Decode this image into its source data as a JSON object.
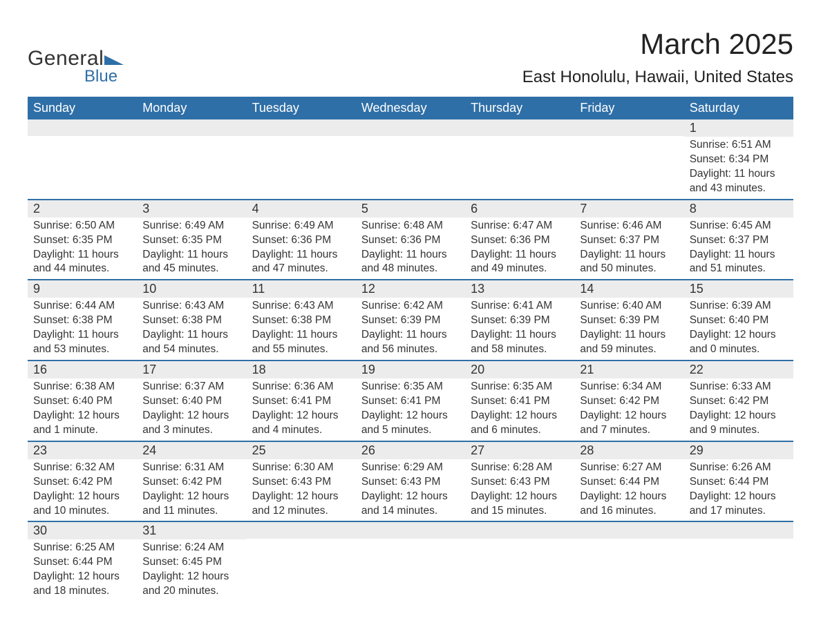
{
  "logo": {
    "text1": "General",
    "text2": "Blue",
    "brand_color": "#2f6fa7"
  },
  "title": "March 2025",
  "location": "East Honolulu, Hawaii, United States",
  "colors": {
    "header_bg": "#2f6fa7",
    "header_text": "#ffffff",
    "daynum_bg": "#ececec",
    "row_border": "#2f6fa7",
    "body_text": "#333333"
  },
  "day_headers": [
    "Sunday",
    "Monday",
    "Tuesday",
    "Wednesday",
    "Thursday",
    "Friday",
    "Saturday"
  ],
  "weeks": [
    [
      {
        "n": "",
        "sr": "",
        "ss": "",
        "dl": ""
      },
      {
        "n": "",
        "sr": "",
        "ss": "",
        "dl": ""
      },
      {
        "n": "",
        "sr": "",
        "ss": "",
        "dl": ""
      },
      {
        "n": "",
        "sr": "",
        "ss": "",
        "dl": ""
      },
      {
        "n": "",
        "sr": "",
        "ss": "",
        "dl": ""
      },
      {
        "n": "",
        "sr": "",
        "ss": "",
        "dl": ""
      },
      {
        "n": "1",
        "sr": "Sunrise: 6:51 AM",
        "ss": "Sunset: 6:34 PM",
        "dl": "Daylight: 11 hours and 43 minutes."
      }
    ],
    [
      {
        "n": "2",
        "sr": "Sunrise: 6:50 AM",
        "ss": "Sunset: 6:35 PM",
        "dl": "Daylight: 11 hours and 44 minutes."
      },
      {
        "n": "3",
        "sr": "Sunrise: 6:49 AM",
        "ss": "Sunset: 6:35 PM",
        "dl": "Daylight: 11 hours and 45 minutes."
      },
      {
        "n": "4",
        "sr": "Sunrise: 6:49 AM",
        "ss": "Sunset: 6:36 PM",
        "dl": "Daylight: 11 hours and 47 minutes."
      },
      {
        "n": "5",
        "sr": "Sunrise: 6:48 AM",
        "ss": "Sunset: 6:36 PM",
        "dl": "Daylight: 11 hours and 48 minutes."
      },
      {
        "n": "6",
        "sr": "Sunrise: 6:47 AM",
        "ss": "Sunset: 6:36 PM",
        "dl": "Daylight: 11 hours and 49 minutes."
      },
      {
        "n": "7",
        "sr": "Sunrise: 6:46 AM",
        "ss": "Sunset: 6:37 PM",
        "dl": "Daylight: 11 hours and 50 minutes."
      },
      {
        "n": "8",
        "sr": "Sunrise: 6:45 AM",
        "ss": "Sunset: 6:37 PM",
        "dl": "Daylight: 11 hours and 51 minutes."
      }
    ],
    [
      {
        "n": "9",
        "sr": "Sunrise: 6:44 AM",
        "ss": "Sunset: 6:38 PM",
        "dl": "Daylight: 11 hours and 53 minutes."
      },
      {
        "n": "10",
        "sr": "Sunrise: 6:43 AM",
        "ss": "Sunset: 6:38 PM",
        "dl": "Daylight: 11 hours and 54 minutes."
      },
      {
        "n": "11",
        "sr": "Sunrise: 6:43 AM",
        "ss": "Sunset: 6:38 PM",
        "dl": "Daylight: 11 hours and 55 minutes."
      },
      {
        "n": "12",
        "sr": "Sunrise: 6:42 AM",
        "ss": "Sunset: 6:39 PM",
        "dl": "Daylight: 11 hours and 56 minutes."
      },
      {
        "n": "13",
        "sr": "Sunrise: 6:41 AM",
        "ss": "Sunset: 6:39 PM",
        "dl": "Daylight: 11 hours and 58 minutes."
      },
      {
        "n": "14",
        "sr": "Sunrise: 6:40 AM",
        "ss": "Sunset: 6:39 PM",
        "dl": "Daylight: 11 hours and 59 minutes."
      },
      {
        "n": "15",
        "sr": "Sunrise: 6:39 AM",
        "ss": "Sunset: 6:40 PM",
        "dl": "Daylight: 12 hours and 0 minutes."
      }
    ],
    [
      {
        "n": "16",
        "sr": "Sunrise: 6:38 AM",
        "ss": "Sunset: 6:40 PM",
        "dl": "Daylight: 12 hours and 1 minute."
      },
      {
        "n": "17",
        "sr": "Sunrise: 6:37 AM",
        "ss": "Sunset: 6:40 PM",
        "dl": "Daylight: 12 hours and 3 minutes."
      },
      {
        "n": "18",
        "sr": "Sunrise: 6:36 AM",
        "ss": "Sunset: 6:41 PM",
        "dl": "Daylight: 12 hours and 4 minutes."
      },
      {
        "n": "19",
        "sr": "Sunrise: 6:35 AM",
        "ss": "Sunset: 6:41 PM",
        "dl": "Daylight: 12 hours and 5 minutes."
      },
      {
        "n": "20",
        "sr": "Sunrise: 6:35 AM",
        "ss": "Sunset: 6:41 PM",
        "dl": "Daylight: 12 hours and 6 minutes."
      },
      {
        "n": "21",
        "sr": "Sunrise: 6:34 AM",
        "ss": "Sunset: 6:42 PM",
        "dl": "Daylight: 12 hours and 7 minutes."
      },
      {
        "n": "22",
        "sr": "Sunrise: 6:33 AM",
        "ss": "Sunset: 6:42 PM",
        "dl": "Daylight: 12 hours and 9 minutes."
      }
    ],
    [
      {
        "n": "23",
        "sr": "Sunrise: 6:32 AM",
        "ss": "Sunset: 6:42 PM",
        "dl": "Daylight: 12 hours and 10 minutes."
      },
      {
        "n": "24",
        "sr": "Sunrise: 6:31 AM",
        "ss": "Sunset: 6:42 PM",
        "dl": "Daylight: 12 hours and 11 minutes."
      },
      {
        "n": "25",
        "sr": "Sunrise: 6:30 AM",
        "ss": "Sunset: 6:43 PM",
        "dl": "Daylight: 12 hours and 12 minutes."
      },
      {
        "n": "26",
        "sr": "Sunrise: 6:29 AM",
        "ss": "Sunset: 6:43 PM",
        "dl": "Daylight: 12 hours and 14 minutes."
      },
      {
        "n": "27",
        "sr": "Sunrise: 6:28 AM",
        "ss": "Sunset: 6:43 PM",
        "dl": "Daylight: 12 hours and 15 minutes."
      },
      {
        "n": "28",
        "sr": "Sunrise: 6:27 AM",
        "ss": "Sunset: 6:44 PM",
        "dl": "Daylight: 12 hours and 16 minutes."
      },
      {
        "n": "29",
        "sr": "Sunrise: 6:26 AM",
        "ss": "Sunset: 6:44 PM",
        "dl": "Daylight: 12 hours and 17 minutes."
      }
    ],
    [
      {
        "n": "30",
        "sr": "Sunrise: 6:25 AM",
        "ss": "Sunset: 6:44 PM",
        "dl": "Daylight: 12 hours and 18 minutes."
      },
      {
        "n": "31",
        "sr": "Sunrise: 6:24 AM",
        "ss": "Sunset: 6:45 PM",
        "dl": "Daylight: 12 hours and 20 minutes."
      },
      {
        "n": "",
        "sr": "",
        "ss": "",
        "dl": ""
      },
      {
        "n": "",
        "sr": "",
        "ss": "",
        "dl": ""
      },
      {
        "n": "",
        "sr": "",
        "ss": "",
        "dl": ""
      },
      {
        "n": "",
        "sr": "",
        "ss": "",
        "dl": ""
      },
      {
        "n": "",
        "sr": "",
        "ss": "",
        "dl": ""
      }
    ]
  ]
}
